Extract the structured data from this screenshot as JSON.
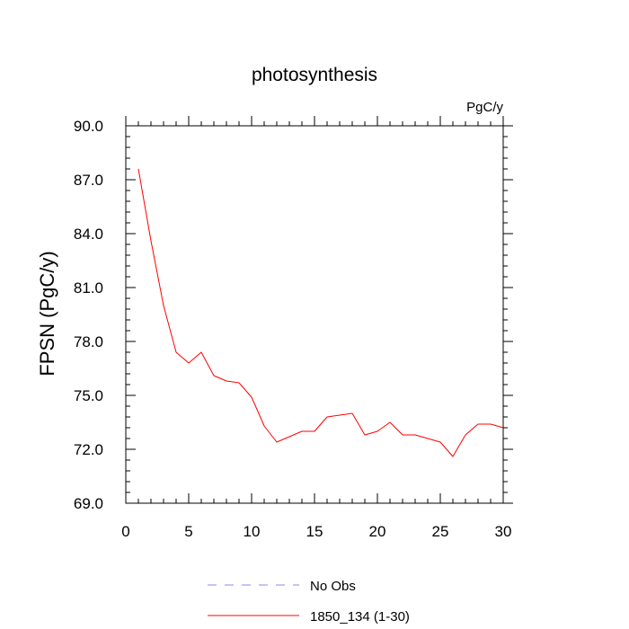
{
  "chart_data": {
    "type": "line",
    "title": "photosynthesis",
    "units_label": "PgC/y",
    "ylabel": "FPSN  (PgC/y)",
    "xlabel": "",
    "xlim": [
      0,
      30
    ],
    "ylim": [
      69.0,
      90.0
    ],
    "x_ticks": [
      0,
      5,
      10,
      15,
      20,
      25,
      30
    ],
    "x_tick_labels": [
      "0",
      "5",
      "10",
      "15",
      "20",
      "25",
      "30"
    ],
    "y_ticks": [
      69.0,
      72.0,
      75.0,
      78.0,
      81.0,
      84.0,
      87.0,
      90.0
    ],
    "y_tick_labels": [
      "69.0",
      "72.0",
      "75.0",
      "78.0",
      "81.0",
      "84.0",
      "87.0",
      "90.0"
    ],
    "grid": false,
    "legend_position": "bottom",
    "series": [
      {
        "name": "1850_134 (1-30)",
        "color": "#ff0000",
        "style": "solid",
        "x": [
          1,
          2,
          3,
          4,
          5,
          6,
          7,
          8,
          9,
          10,
          11,
          12,
          13,
          14,
          15,
          16,
          17,
          18,
          19,
          20,
          21,
          22,
          23,
          24,
          25,
          26,
          27,
          28,
          29,
          30
        ],
        "values": [
          87.6,
          83.6,
          80.0,
          77.4,
          76.8,
          77.4,
          76.1,
          75.8,
          75.7,
          74.9,
          73.3,
          72.4,
          72.7,
          73.0,
          73.0,
          73.8,
          73.9,
          74.0,
          72.8,
          73.0,
          73.5,
          72.8,
          72.8,
          72.6,
          72.4,
          71.6,
          72.8,
          73.4,
          73.4,
          73.2
        ]
      }
    ],
    "legend_entries": [
      {
        "label": "No Obs",
        "color": "#0000ff",
        "style": "dashed"
      },
      {
        "label": "1850_134 (1-30)",
        "color": "#ff0000",
        "style": "solid"
      }
    ]
  }
}
